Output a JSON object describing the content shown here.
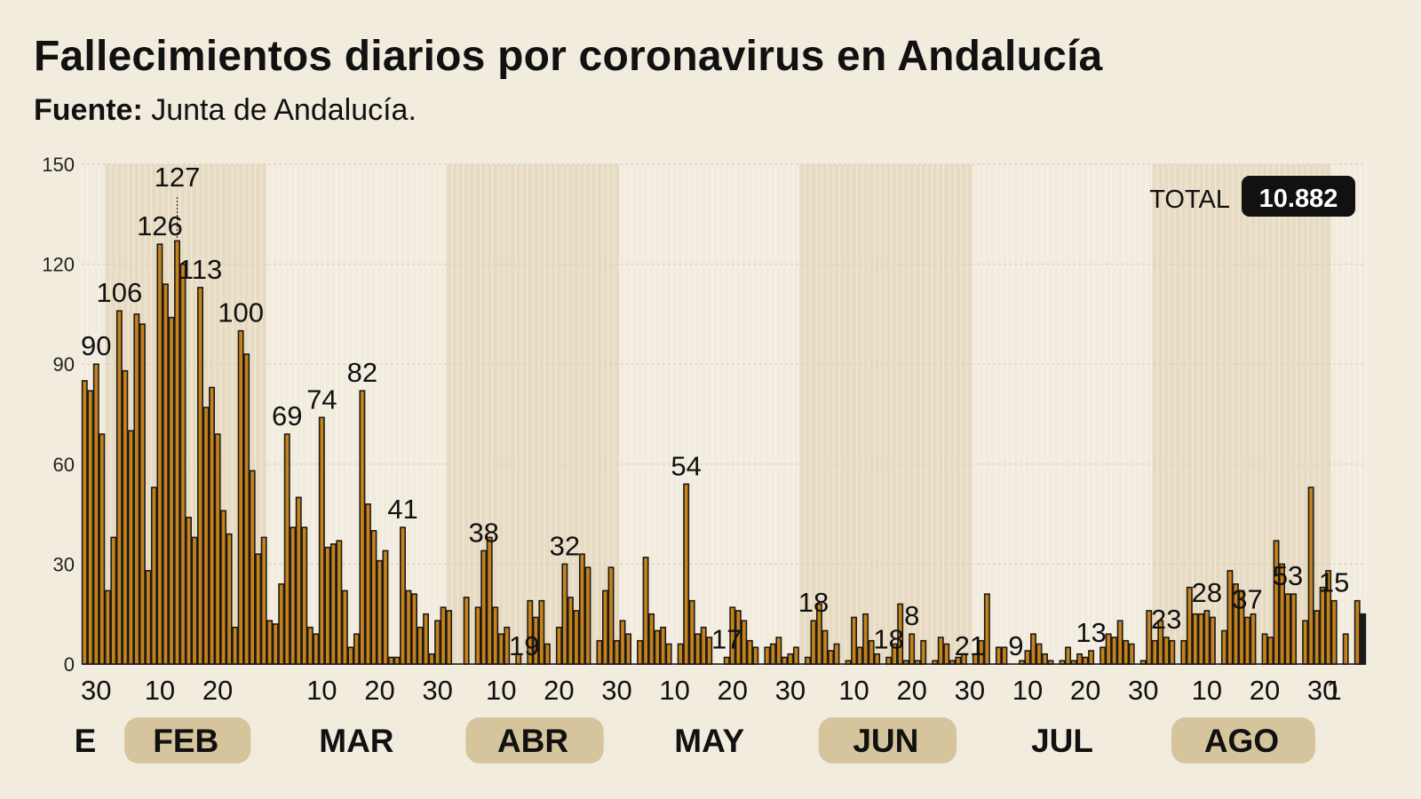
{
  "header": {
    "title": "Fallecimientos diarios por coronavirus en Andalucía",
    "source_label": "Fuente:",
    "source_value": "Junta de Andalucía."
  },
  "total": {
    "label": "TOTAL",
    "value": "10.882"
  },
  "colors": {
    "background": "#f2ecdf",
    "bar": "#c5811a",
    "bar_stroke": "#1a1a1a",
    "last_bar": "#1a1a1a",
    "month_band": "#e7dcc3",
    "month_pill": "#d6c49c",
    "grid": "#d8d0bd"
  },
  "chart_data": {
    "type": "bar",
    "title": "Fallecimientos diarios por coronavirus en Andalucía",
    "ylim": [
      0,
      150
    ],
    "yticks": [
      0,
      30,
      60,
      90,
      120,
      150
    ],
    "grid": true,
    "x_start": "2021-01-28",
    "x_end": "2021-09-01",
    "values": [
      85,
      82,
      90,
      69,
      22,
      38,
      106,
      88,
      70,
      105,
      102,
      28,
      53,
      126,
      114,
      104,
      127,
      120,
      44,
      38,
      113,
      77,
      83,
      69,
      46,
      39,
      11,
      100,
      93,
      58,
      33,
      38,
      13,
      12,
      24,
      69,
      41,
      50,
      41,
      11,
      9,
      74,
      35,
      36,
      37,
      22,
      5,
      9,
      82,
      48,
      40,
      31,
      34,
      2,
      2,
      41,
      22,
      21,
      11,
      15,
      3,
      13,
      17,
      16,
      null,
      null,
      20,
      null,
      17,
      34,
      38,
      17,
      9,
      11,
      null,
      3,
      null,
      19,
      14,
      19,
      6,
      null,
      11,
      30,
      20,
      16,
      33,
      29,
      null,
      7,
      22,
      29,
      7,
      13,
      9,
      null,
      7,
      32,
      15,
      10,
      11,
      6,
      null,
      6,
      54,
      19,
      9,
      11,
      8,
      null,
      null,
      2,
      17,
      16,
      13,
      7,
      5,
      null,
      5,
      6,
      8,
      2,
      3,
      5,
      null,
      2,
      13,
      18,
      10,
      4,
      6,
      null,
      1,
      14,
      5,
      15,
      7,
      3,
      null,
      2,
      6,
      18,
      1,
      9,
      1,
      7,
      null,
      1,
      8,
      6,
      1,
      2,
      3,
      null,
      3,
      7,
      21,
      null,
      5,
      5,
      null,
      null,
      1,
      4,
      9,
      6,
      3,
      1,
      null,
      1,
      5,
      1,
      3,
      2,
      4,
      null,
      5,
      9,
      8,
      13,
      7,
      6,
      null,
      1,
      16,
      7,
      13,
      8,
      7,
      null,
      7,
      23,
      15,
      15,
      16,
      14,
      null,
      10,
      28,
      24,
      22,
      14,
      15,
      null,
      9,
      8,
      37,
      30,
      21,
      21,
      null,
      13,
      53,
      16,
      23,
      28,
      19,
      null,
      9,
      null,
      19,
      15
    ],
    "value_labels": [
      {
        "x": "2021-01-30",
        "label": "90"
      },
      {
        "x": "2021-02-03",
        "label": "106"
      },
      {
        "x": "2021-02-10",
        "label": "126"
      },
      {
        "x": "2021-02-13",
        "label": "127"
      },
      {
        "x": "2021-02-17",
        "label": "113"
      },
      {
        "x": "2021-02-24",
        "label": "100"
      },
      {
        "x": "2021-03-04",
        "label": "69"
      },
      {
        "x": "2021-03-10",
        "label": "74"
      },
      {
        "x": "2021-03-17",
        "label": "82"
      },
      {
        "x": "2021-03-24",
        "label": "41"
      },
      {
        "x": "2021-04-07",
        "label": "38"
      },
      {
        "x": "2021-04-14",
        "label": "19"
      },
      {
        "x": "2021-04-21",
        "label": "32"
      },
      {
        "x": "2021-05-12",
        "label": "54"
      },
      {
        "x": "2021-05-19",
        "label": "17"
      },
      {
        "x": "2021-06-03",
        "label": "18"
      },
      {
        "x": "2021-06-16",
        "label": "18"
      },
      {
        "x": "2021-06-20",
        "label": "8"
      },
      {
        "x": "2021-06-30",
        "label": "21"
      },
      {
        "x": "2021-07-08",
        "label": "9"
      },
      {
        "x": "2021-07-21",
        "label": "13"
      },
      {
        "x": "2021-08-03",
        "label": "23"
      },
      {
        "x": "2021-08-10",
        "label": "28"
      },
      {
        "x": "2021-08-17",
        "label": "37"
      },
      {
        "x": "2021-08-24",
        "label": "53"
      },
      {
        "x": "2021-09-01",
        "label": "15"
      }
    ],
    "day_ticks": [
      {
        "x": "2021-01-30",
        "label": "30"
      },
      {
        "x": "2021-02-10",
        "label": "10"
      },
      {
        "x": "2021-02-20",
        "label": "20"
      },
      {
        "x": "2021-03-10",
        "label": "10"
      },
      {
        "x": "2021-03-20",
        "label": "20"
      },
      {
        "x": "2021-03-30",
        "label": "30"
      },
      {
        "x": "2021-04-10",
        "label": "10"
      },
      {
        "x": "2021-04-20",
        "label": "20"
      },
      {
        "x": "2021-04-30",
        "label": "30"
      },
      {
        "x": "2021-05-10",
        "label": "10"
      },
      {
        "x": "2021-05-20",
        "label": "20"
      },
      {
        "x": "2021-05-30",
        "label": "30"
      },
      {
        "x": "2021-06-10",
        "label": "10"
      },
      {
        "x": "2021-06-20",
        "label": "20"
      },
      {
        "x": "2021-06-30",
        "label": "30"
      },
      {
        "x": "2021-07-10",
        "label": "10"
      },
      {
        "x": "2021-07-20",
        "label": "20"
      },
      {
        "x": "2021-07-30",
        "label": "30"
      },
      {
        "x": "2021-08-10",
        "label": "10"
      },
      {
        "x": "2021-08-20",
        "label": "20"
      },
      {
        "x": "2021-08-30",
        "label": "30"
      },
      {
        "x": "2021-09-01",
        "label": "1"
      }
    ],
    "months": [
      {
        "label": "E",
        "start": "2021-01-28",
        "end": "2021-01-31",
        "shaded": false
      },
      {
        "label": "FEB",
        "start": "2021-02-01",
        "end": "2021-02-28",
        "shaded": true
      },
      {
        "label": "MAR",
        "start": "2021-03-01",
        "end": "2021-03-31",
        "shaded": false
      },
      {
        "label": "ABR",
        "start": "2021-04-01",
        "end": "2021-04-30",
        "shaded": true
      },
      {
        "label": "MAY",
        "start": "2021-05-01",
        "end": "2021-05-31",
        "shaded": false
      },
      {
        "label": "JUN",
        "start": "2021-06-01",
        "end": "2021-06-30",
        "shaded": true
      },
      {
        "label": "JUL",
        "start": "2021-07-01",
        "end": "2021-07-31",
        "shaded": false
      },
      {
        "label": "AGO",
        "start": "2021-08-01",
        "end": "2021-08-31",
        "shaded": true
      }
    ]
  }
}
